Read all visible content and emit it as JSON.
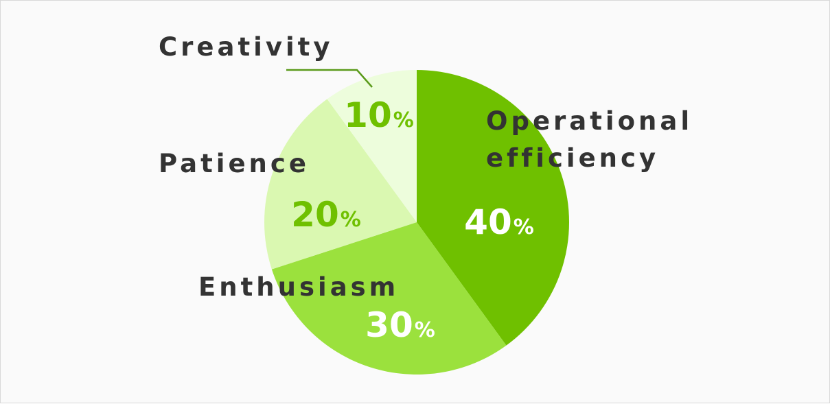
{
  "chart_data": {
    "type": "pie",
    "slices": [
      {
        "label_lines": [
          "Operational",
          "efficiency"
        ],
        "value": 40,
        "value_text": "40",
        "unit": "%",
        "color": "#6fc000",
        "value_color": "#ffffff"
      },
      {
        "label_lines": [
          "Enthusiasm"
        ],
        "value": 30,
        "value_text": "30",
        "unit": "%",
        "color": "#9be13d",
        "value_color": "#ffffff"
      },
      {
        "label_lines": [
          "Patience"
        ],
        "value": 20,
        "value_text": "20",
        "unit": "%",
        "color": "#daf8b1",
        "value_color": "#6fc000"
      },
      {
        "label_lines": [
          "Creativity"
        ],
        "value": 10,
        "value_text": "10",
        "unit": "%",
        "color": "#edfddc",
        "value_color": "#6fc000"
      }
    ],
    "start_angle": "12 o'clock",
    "direction": "clockwise",
    "legend": "none",
    "leader_line_color": "#5a9a1a",
    "label_color": "#333333"
  }
}
